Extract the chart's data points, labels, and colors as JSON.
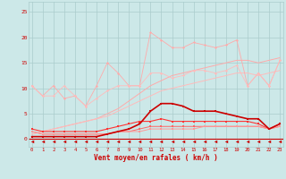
{
  "x": [
    0,
    1,
    2,
    3,
    4,
    5,
    6,
    7,
    8,
    9,
    10,
    11,
    12,
    13,
    14,
    15,
    16,
    17,
    18,
    19,
    20,
    21,
    22,
    23
  ],
  "line1": [
    10.5,
    8.5,
    10.5,
    8.0,
    8.5,
    6.5,
    10.5,
    15.0,
    13.0,
    10.5,
    10.5,
    21.0,
    19.5,
    18.0,
    18.0,
    19.0,
    18.5,
    18.0,
    18.5,
    19.5,
    10.5,
    13.0,
    10.5,
    15.5
  ],
  "line2": [
    10.5,
    8.5,
    8.5,
    10.5,
    8.5,
    6.5,
    8.0,
    9.5,
    10.5,
    10.5,
    10.5,
    13.0,
    13.0,
    12.0,
    12.5,
    13.5,
    13.5,
    13.0,
    13.5,
    14.5,
    10.5,
    13.0,
    10.5,
    15.5
  ],
  "line3_trend": [
    1.0,
    1.5,
    2.0,
    2.5,
    3.0,
    3.5,
    4.0,
    5.0,
    6.0,
    7.5,
    9.0,
    10.5,
    11.5,
    12.5,
    13.0,
    13.5,
    14.0,
    14.5,
    15.0,
    15.5,
    15.5,
    15.0,
    15.5,
    16.0
  ],
  "line4_trend": [
    1.0,
    1.5,
    2.0,
    2.5,
    3.0,
    3.5,
    4.0,
    4.5,
    5.5,
    6.5,
    7.5,
    8.5,
    9.5,
    10.0,
    10.5,
    11.0,
    11.5,
    12.0,
    12.5,
    13.0,
    13.0,
    12.5,
    13.0,
    13.5
  ],
  "line3": [
    0.5,
    0.5,
    0.5,
    0.5,
    0.5,
    0.5,
    0.5,
    1.0,
    1.5,
    2.0,
    3.0,
    5.5,
    7.0,
    7.0,
    6.5,
    5.5,
    5.5,
    5.5,
    5.0,
    4.5,
    4.0,
    4.0,
    2.0,
    3.0
  ],
  "line4": [
    2.0,
    1.5,
    1.5,
    1.5,
    1.5,
    1.5,
    1.5,
    2.0,
    2.5,
    3.0,
    3.5,
    3.5,
    4.0,
    3.5,
    3.5,
    3.5,
    3.5,
    3.5,
    3.5,
    3.5,
    3.5,
    3.0,
    2.0,
    3.0
  ],
  "line5": [
    1.5,
    1.0,
    1.0,
    1.0,
    1.0,
    1.0,
    1.0,
    1.0,
    1.5,
    1.5,
    2.0,
    2.5,
    2.5,
    2.5,
    2.5,
    2.5,
    2.5,
    2.5,
    2.5,
    2.5,
    2.5,
    2.5,
    2.0,
    2.5
  ],
  "line6": [
    1.5,
    1.0,
    1.0,
    1.0,
    1.0,
    1.0,
    1.0,
    1.0,
    1.5,
    1.5,
    1.5,
    2.0,
    2.0,
    2.0,
    2.0,
    2.0,
    2.5,
    2.5,
    2.5,
    2.5,
    2.5,
    2.5,
    2.0,
    2.5
  ],
  "line_bottom": [
    -0.5,
    -0.5,
    -0.5,
    -0.5,
    -0.5,
    -0.5,
    -0.5,
    -0.5,
    -0.5,
    -0.5,
    -0.5,
    -0.5,
    -0.5,
    -0.5,
    -0.5,
    -0.5,
    -0.5,
    -0.5,
    -0.5,
    -0.5,
    -0.5,
    -0.5,
    -0.5,
    -0.5
  ],
  "bg_color": "#cce8e8",
  "grid_color": "#aacccc",
  "color_light1": "#ffaaaa",
  "color_light2": "#ffbbbb",
  "color_dark": "#cc0000",
  "color_med1": "#ff3333",
  "color_med2": "#ff6666",
  "color_med3": "#ff9999",
  "xlabel": "Vent moyen/en rafales ( km/h )",
  "yticks": [
    0,
    5,
    10,
    15,
    20,
    25
  ],
  "ylim": [
    -1.5,
    27
  ],
  "xlim": [
    -0.3,
    23.3
  ]
}
